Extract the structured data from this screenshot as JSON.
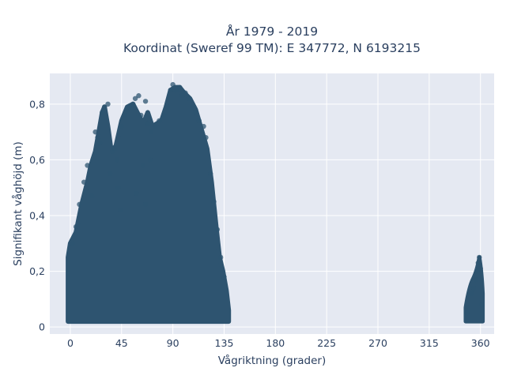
{
  "chart_data": {
    "type": "scatter",
    "title_line1": "År 1979 - 2019",
    "title_line2": "Koordinat (Sweref 99 TM): E 347772, N 6193215",
    "xlabel": "Vågriktning (grader)",
    "ylabel": "Signifikant våghöjd (m)",
    "xlim": [
      -18,
      372
    ],
    "ylim": [
      -0.025,
      0.91
    ],
    "x_ticks": [
      0,
      45,
      90,
      135,
      180,
      225,
      270,
      315,
      360
    ],
    "y_ticks": [
      0,
      0.2,
      0.4,
      0.6,
      0.8
    ],
    "y_tick_labels": [
      "0",
      "0,2",
      "0,4",
      "0,6",
      "0,8"
    ],
    "grid": true,
    "colors": {
      "marker": "#2e5470",
      "plot_bg": "#e5e9f2",
      "grid": "#ffffff"
    },
    "envelope": [
      [
        -2,
        0.06
      ],
      [
        -2,
        0.25
      ],
      [
        0,
        0.3
      ],
      [
        5,
        0.34
      ],
      [
        10,
        0.44
      ],
      [
        15,
        0.52
      ],
      [
        18,
        0.58
      ],
      [
        22,
        0.63
      ],
      [
        25,
        0.7
      ],
      [
        28,
        0.77
      ],
      [
        30,
        0.79
      ],
      [
        33,
        0.72
      ],
      [
        36,
        0.63
      ],
      [
        40,
        0.65
      ],
      [
        45,
        0.74
      ],
      [
        50,
        0.79
      ],
      [
        55,
        0.8
      ],
      [
        60,
        0.76
      ],
      [
        64,
        0.73
      ],
      [
        68,
        0.77
      ],
      [
        72,
        0.72
      ],
      [
        76,
        0.73
      ],
      [
        80,
        0.74
      ],
      [
        84,
        0.79
      ],
      [
        88,
        0.85
      ],
      [
        92,
        0.86
      ],
      [
        96,
        0.86
      ],
      [
        100,
        0.84
      ],
      [
        105,
        0.82
      ],
      [
        110,
        0.78
      ],
      [
        115,
        0.71
      ],
      [
        120,
        0.64
      ],
      [
        124,
        0.52
      ],
      [
        126,
        0.44
      ],
      [
        128,
        0.36
      ],
      [
        131,
        0.25
      ],
      [
        134,
        0.2
      ],
      [
        137,
        0.13
      ],
      [
        139,
        0.06
      ],
      [
        139,
        0.02
      ],
      [
        -2,
        0.02
      ]
    ],
    "cluster_360": {
      "x_range": [
        347,
        362
      ],
      "y_range": [
        0.02,
        0.25
      ],
      "top_point": [
        359,
        0.25
      ]
    },
    "sample_points": [
      [
        30,
        0.79
      ],
      [
        33,
        0.8
      ],
      [
        37,
        0.63
      ],
      [
        39,
        0.64
      ],
      [
        41,
        0.6
      ],
      [
        45,
        0.72
      ],
      [
        48,
        0.76
      ],
      [
        50,
        0.78
      ],
      [
        52,
        0.79
      ],
      [
        55,
        0.8
      ],
      [
        57,
        0.82
      ],
      [
        60,
        0.83
      ],
      [
        62,
        0.76
      ],
      [
        66,
        0.81
      ],
      [
        68,
        0.73
      ],
      [
        71,
        0.7
      ],
      [
        75,
        0.72
      ],
      [
        78,
        0.74
      ],
      [
        82,
        0.76
      ],
      [
        85,
        0.79
      ],
      [
        88,
        0.85
      ],
      [
        90,
        0.87
      ],
      [
        93,
        0.85
      ],
      [
        96,
        0.86
      ],
      [
        98,
        0.83
      ],
      [
        101,
        0.84
      ],
      [
        104,
        0.82
      ],
      [
        107,
        0.79
      ],
      [
        110,
        0.77
      ],
      [
        113,
        0.74
      ],
      [
        117,
        0.72
      ],
      [
        119,
        0.68
      ],
      [
        22,
        0.7
      ],
      [
        24,
        0.68
      ],
      [
        26,
        0.66
      ],
      [
        28,
        0.77
      ],
      [
        15,
        0.58
      ],
      [
        12,
        0.52
      ],
      [
        8,
        0.44
      ],
      [
        5,
        0.36
      ],
      [
        2,
        0.3
      ],
      [
        123,
        0.55
      ],
      [
        126,
        0.45
      ],
      [
        129,
        0.35
      ],
      [
        132,
        0.25
      ],
      [
        135,
        0.18
      ],
      [
        64,
        0.58
      ],
      [
        70,
        0.6
      ],
      [
        35,
        0.55
      ],
      [
        42,
        0.5
      ],
      [
        58,
        0.48
      ],
      [
        66,
        0.44
      ],
      [
        44,
        0.42
      ],
      [
        19,
        0.47
      ],
      [
        359,
        0.25
      ],
      [
        358,
        0.23
      ],
      [
        357,
        0.2
      ],
      [
        360,
        0.21
      ],
      [
        356,
        0.17
      ],
      [
        354,
        0.14
      ],
      [
        352,
        0.12
      ],
      [
        349,
        0.07
      ],
      [
        348,
        0.05
      ],
      [
        361,
        0.08
      ]
    ]
  }
}
